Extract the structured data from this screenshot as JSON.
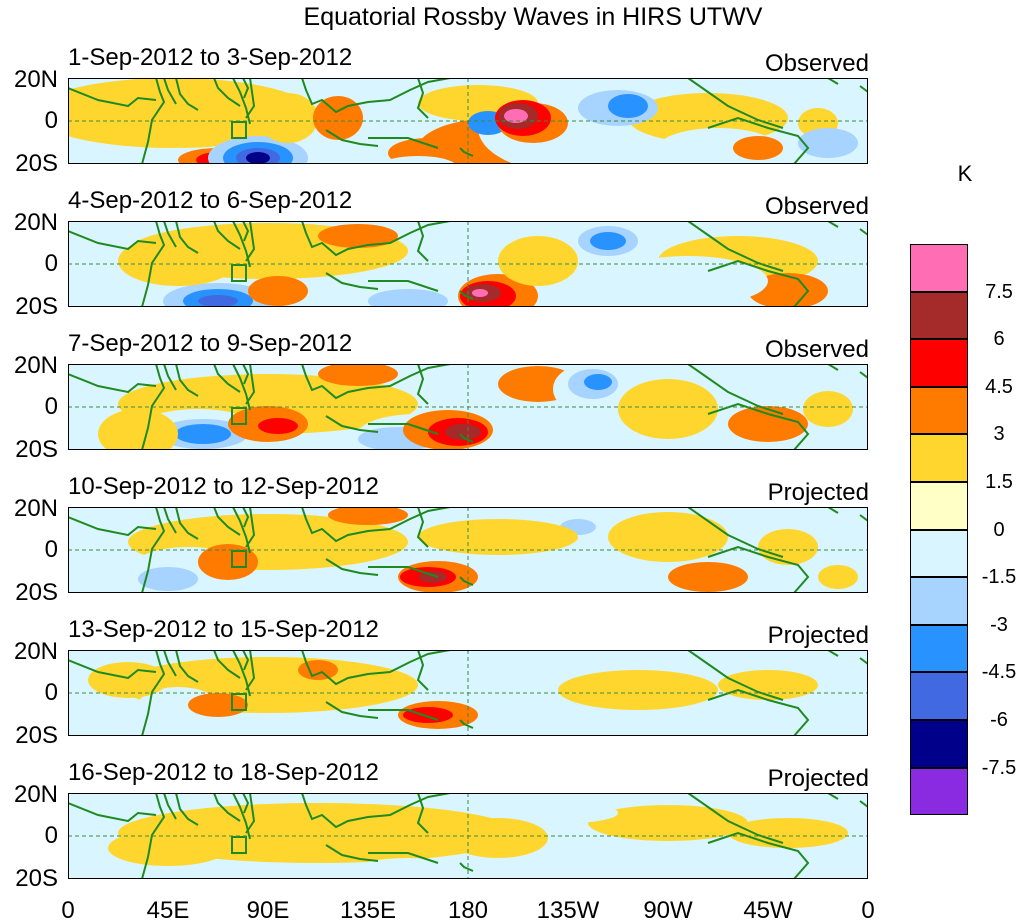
{
  "title": "Equatorial Rossby Waves in HIRS UTWV",
  "panels": [
    {
      "date": "1-Sep-2012 to 3-Sep-2012",
      "status": "Observed"
    },
    {
      "date": "4-Sep-2012 to 6-Sep-2012",
      "status": "Observed"
    },
    {
      "date": "7-Sep-2012 to 9-Sep-2012",
      "status": "Observed"
    },
    {
      "date": "10-Sep-2012 to 12-Sep-2012",
      "status": "Projected"
    },
    {
      "date": "13-Sep-2012 to 15-Sep-2012",
      "status": "Projected"
    },
    {
      "date": "16-Sep-2012 to 18-Sep-2012",
      "status": "Projected"
    }
  ],
  "lat_labels": {
    "north": "20N",
    "equator": "0",
    "south": "20S"
  },
  "lon_labels": [
    "0",
    "45E",
    "90E",
    "135E",
    "180",
    "135W",
    "90W",
    "45W",
    "0"
  ],
  "colorbar": {
    "unit": "K",
    "levels": [
      "7.5",
      "6",
      "4.5",
      "3",
      "1.5",
      "0",
      "-1.5",
      "-3",
      "-4.5",
      "-6",
      "-7.5"
    ],
    "colors": [
      "#ff6eb4",
      "#a52a2a",
      "#ff0000",
      "#ff7b00",
      "#ffd62e",
      "#ffffc6",
      "#d9f5ff",
      "#a6d3ff",
      "#2893ff",
      "#4169e1",
      "#00008b",
      "#8a2be2"
    ]
  },
  "colors": {
    "land": "#1f8a1f",
    "guide": "#3c8a3c"
  }
}
